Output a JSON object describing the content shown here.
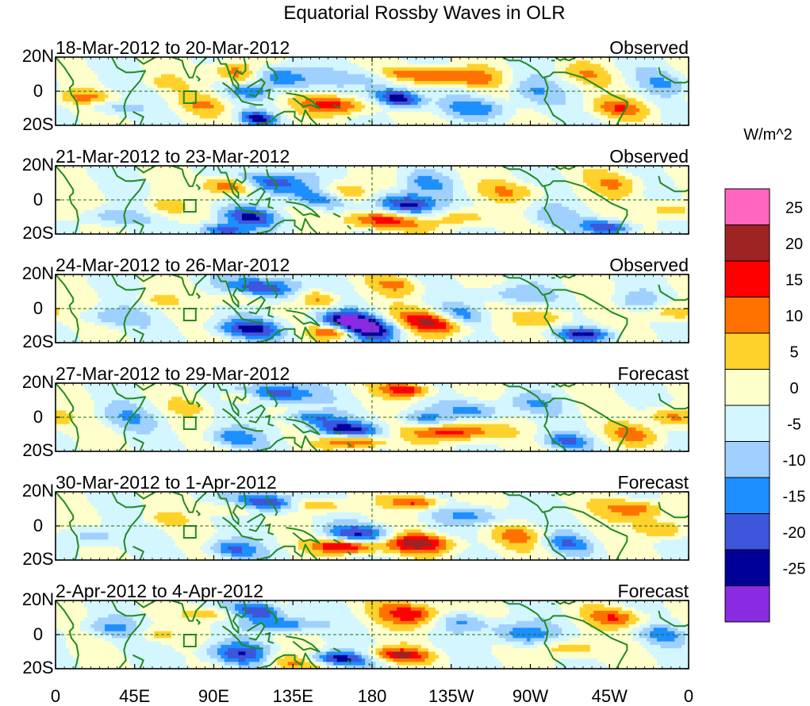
{
  "chart_data": {
    "type": "heatmap",
    "title": "Equatorial Rossby Waves in OLR",
    "units_label": "W/m^2",
    "x_ticks": [
      "0",
      "45E",
      "90E",
      "135E",
      "180",
      "135W",
      "90W",
      "45W",
      "0"
    ],
    "y_ticks": [
      "20N",
      "0",
      "20S"
    ],
    "lon_range": [
      0,
      360
    ],
    "lat_range": [
      -20,
      20
    ],
    "colorbar": {
      "levels": [
        "25",
        "20",
        "15",
        "10",
        "5",
        "0",
        "-5",
        "-10",
        "-15",
        "-20",
        "-25"
      ],
      "colors": [
        "#ff66c0",
        "#9e2424",
        "#ff0000",
        "#ff7200",
        "#ffd12b",
        "#ffffcc",
        "#d4f6ff",
        "#9fd0ff",
        "#1e8fff",
        "#3c56dc",
        "#000096",
        "#8a2be2"
      ]
    },
    "panels": [
      {
        "period": "18-Mar-2012 to 20-Mar-2012",
        "status": "Observed",
        "blobs": [
          [
            20,
            -4,
            14,
            3,
            12
          ],
          [
            30,
            -8,
            10,
            4,
            -10
          ],
          [
            105,
            10,
            10,
            5,
            22
          ],
          [
            110,
            0,
            8,
            3,
            -12
          ],
          [
            125,
            8,
            15,
            5,
            -20
          ],
          [
            115,
            -16,
            7,
            3,
            -20
          ],
          [
            160,
            -8,
            14,
            4,
            18
          ],
          [
            195,
            -4,
            9,
            4,
            -28
          ],
          [
            205,
            10,
            14,
            3,
            12
          ],
          [
            180,
            8,
            10,
            4,
            -8
          ],
          [
            230,
            8,
            16,
            4,
            14
          ],
          [
            240,
            -10,
            14,
            4,
            -12
          ],
          [
            270,
            0,
            10,
            6,
            -10
          ],
          [
            300,
            10,
            10,
            4,
            8
          ],
          [
            320,
            -10,
            12,
            4,
            12
          ],
          [
            345,
            5,
            10,
            5,
            -8
          ],
          [
            60,
            5,
            8,
            3,
            6
          ],
          [
            85,
            -8,
            10,
            4,
            8
          ]
        ]
      },
      {
        "period": "21-Mar-2012 to 23-Mar-2012",
        "status": "Observed",
        "blobs": [
          [
            100,
            8,
            10,
            4,
            20
          ],
          [
            125,
            10,
            14,
            5,
            -22
          ],
          [
            110,
            -10,
            12,
            4,
            -18
          ],
          [
            95,
            -18,
            10,
            3,
            -20
          ],
          [
            150,
            0,
            12,
            4,
            -14
          ],
          [
            165,
            4,
            10,
            5,
            14
          ],
          [
            185,
            -12,
            15,
            4,
            20
          ],
          [
            200,
            -3,
            12,
            5,
            -26
          ],
          [
            210,
            10,
            10,
            4,
            -10
          ],
          [
            230,
            -10,
            12,
            4,
            12
          ],
          [
            260,
            5,
            15,
            4,
            8
          ],
          [
            280,
            -10,
            10,
            5,
            -8
          ],
          [
            315,
            -16,
            10,
            3,
            -20
          ],
          [
            320,
            10,
            10,
            5,
            10
          ],
          [
            350,
            -6,
            12,
            4,
            10
          ],
          [
            30,
            -10,
            12,
            4,
            -10
          ],
          [
            60,
            -4,
            8,
            4,
            8
          ]
        ]
      },
      {
        "period": "24-Mar-2012 to 26-Mar-2012",
        "status": "Observed",
        "blobs": [
          [
            120,
            12,
            14,
            5,
            -22
          ],
          [
            105,
            6,
            10,
            3,
            12
          ],
          [
            110,
            -12,
            14,
            4,
            -20
          ],
          [
            150,
            6,
            8,
            4,
            14
          ],
          [
            165,
            -6,
            12,
            4,
            -14
          ],
          [
            175,
            -12,
            14,
            5,
            -28
          ],
          [
            160,
            -14,
            10,
            3,
            24
          ],
          [
            215,
            -8,
            14,
            5,
            22
          ],
          [
            230,
            -4,
            10,
            4,
            -14
          ],
          [
            195,
            14,
            10,
            4,
            10
          ],
          [
            260,
            8,
            14,
            4,
            -10
          ],
          [
            280,
            -5,
            10,
            5,
            10
          ],
          [
            300,
            -15,
            12,
            3,
            -20
          ],
          [
            330,
            4,
            10,
            4,
            -8
          ],
          [
            350,
            -2,
            10,
            4,
            12
          ],
          [
            30,
            -5,
            12,
            4,
            -10
          ],
          [
            55,
            5,
            8,
            3,
            6
          ]
        ]
      },
      {
        "period": "27-Mar-2012 to 29-Mar-2012",
        "status": "Forecast",
        "blobs": [
          [
            125,
            14,
            14,
            4,
            -22
          ],
          [
            105,
            12,
            10,
            3,
            10
          ],
          [
            145,
            0,
            10,
            3,
            -14
          ],
          [
            165,
            -8,
            14,
            4,
            -22
          ],
          [
            170,
            -14,
            12,
            3,
            24
          ],
          [
            200,
            16,
            10,
            3,
            20
          ],
          [
            225,
            -8,
            16,
            4,
            22
          ],
          [
            240,
            4,
            12,
            4,
            -12
          ],
          [
            210,
            -2,
            10,
            4,
            -16
          ],
          [
            100,
            -12,
            10,
            4,
            -14
          ],
          [
            270,
            8,
            12,
            4,
            -8
          ],
          [
            290,
            -14,
            10,
            3,
            -14
          ],
          [
            330,
            -10,
            12,
            4,
            10
          ],
          [
            350,
            0,
            10,
            4,
            14
          ],
          [
            40,
            0,
            12,
            5,
            -8
          ],
          [
            75,
            6,
            8,
            3,
            6
          ]
        ]
      },
      {
        "period": "30-Mar-2012 to 1-Apr-2012",
        "status": "Forecast",
        "blobs": [
          [
            120,
            14,
            12,
            4,
            -24
          ],
          [
            100,
            10,
            10,
            3,
            10
          ],
          [
            150,
            12,
            10,
            3,
            14
          ],
          [
            175,
            -5,
            14,
            4,
            -20
          ],
          [
            165,
            -12,
            12,
            3,
            24
          ],
          [
            205,
            -10,
            16,
            4,
            22
          ],
          [
            205,
            14,
            10,
            3,
            18
          ],
          [
            240,
            6,
            14,
            4,
            -12
          ],
          [
            265,
            -6,
            12,
            5,
            10
          ],
          [
            100,
            -14,
            10,
            4,
            -16
          ],
          [
            290,
            -10,
            10,
            4,
            -14
          ],
          [
            330,
            10,
            12,
            4,
            16
          ],
          [
            345,
            -2,
            10,
            4,
            14
          ],
          [
            20,
            -6,
            12,
            4,
            -10
          ],
          [
            60,
            4,
            8,
            3,
            6
          ]
        ]
      },
      {
        "period": "2-Apr-2012 to 4-Apr-2012",
        "status": "Forecast",
        "blobs": [
          [
            115,
            14,
            10,
            4,
            -22
          ],
          [
            130,
            6,
            12,
            3,
            -16
          ],
          [
            105,
            -12,
            14,
            5,
            -20
          ],
          [
            130,
            -16,
            14,
            4,
            14
          ],
          [
            160,
            -14,
            12,
            3,
            -24
          ],
          [
            195,
            -12,
            12,
            3,
            20
          ],
          [
            205,
            12,
            14,
            5,
            20
          ],
          [
            230,
            8,
            12,
            4,
            -12
          ],
          [
            265,
            0,
            12,
            5,
            -16
          ],
          [
            290,
            -8,
            12,
            4,
            12
          ],
          [
            320,
            10,
            12,
            4,
            14
          ],
          [
            345,
            0,
            10,
            4,
            -10
          ],
          [
            30,
            4,
            12,
            4,
            -10
          ],
          [
            55,
            0,
            8,
            3,
            8
          ],
          [
            90,
            12,
            10,
            3,
            10
          ]
        ]
      }
    ]
  }
}
